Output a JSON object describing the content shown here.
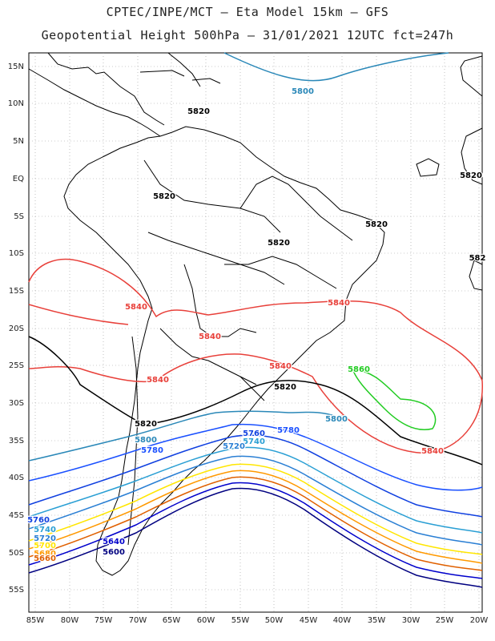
{
  "header": {
    "line1": "CPTEC/INPE/MCT –  Eta Model 15km – GFS",
    "line2": "Geopotential Height 500hPa – 31/01/2021 12UTC fct=247h"
  },
  "axes": {
    "lat_labels": [
      "15N",
      "10N",
      "5N",
      "EQ",
      "5S",
      "10S",
      "15S",
      "20S",
      "25S",
      "30S",
      "35S",
      "40S",
      "45S",
      "50S",
      "55S"
    ],
    "lon_labels": [
      "85W",
      "80W",
      "75W",
      "70W",
      "65W",
      "60W",
      "55W",
      "50W",
      "45W",
      "40W",
      "35W",
      "30W",
      "25W",
      "20W"
    ]
  },
  "colors": {
    "c5560": "#001a66",
    "c5580": "#1a1a99",
    "c5600": "#000080",
    "c5640": "#0000cc",
    "c5660": "#e06000",
    "c5680": "#ff9900",
    "c5700": "#ffe600",
    "c5720": "#2a7fd4",
    "c5740": "#2a9fd4",
    "c5760": "#1040e0",
    "c5780": "#1a50ff",
    "c5800": "#2a88b8",
    "c5820": "#000000",
    "c5840": "#e8403a",
    "c5860": "#22cc22"
  },
  "contour_labels": [
    {
      "id": "l5800a",
      "text": "5800"
    },
    {
      "id": "l5820a",
      "text": "5820"
    },
    {
      "id": "l5820b",
      "text": "5820"
    },
    {
      "id": "l5820c",
      "text": "5820"
    },
    {
      "id": "l5820d",
      "text": "5820"
    },
    {
      "id": "l5820e",
      "text": "5820"
    },
    {
      "id": "l5820f",
      "text": "582"
    },
    {
      "id": "l5840a",
      "text": "5840"
    },
    {
      "id": "l5840b",
      "text": "5840"
    },
    {
      "id": "l5840c",
      "text": "5840"
    },
    {
      "id": "l5840d",
      "text": "5840"
    },
    {
      "id": "l5840e",
      "text": "5840"
    },
    {
      "id": "l5840f",
      "text": "5840"
    },
    {
      "id": "l5860a",
      "text": "5860"
    },
    {
      "id": "l5820g",
      "text": "5820"
    },
    {
      "id": "l5820h",
      "text": "5820"
    },
    {
      "id": "l5800b",
      "text": "5800"
    },
    {
      "id": "l5800c",
      "text": "5800"
    },
    {
      "id": "l5780a",
      "text": "5780"
    },
    {
      "id": "l5780b",
      "text": "5780"
    },
    {
      "id": "l5760a",
      "text": "5760"
    },
    {
      "id": "l5740a",
      "text": "5740"
    },
    {
      "id": "l5720a",
      "text": "5720"
    },
    {
      "id": "l5760b",
      "text": "5760"
    },
    {
      "id": "l5740b",
      "text": "5740"
    },
    {
      "id": "l5720b",
      "text": "5720"
    },
    {
      "id": "l5700a",
      "text": "5700"
    },
    {
      "id": "l5680a",
      "text": "5680"
    },
    {
      "id": "l5660a",
      "text": "5660"
    },
    {
      "id": "l5640a",
      "text": "5640"
    },
    {
      "id": "l5600a",
      "text": "5600"
    }
  ]
}
